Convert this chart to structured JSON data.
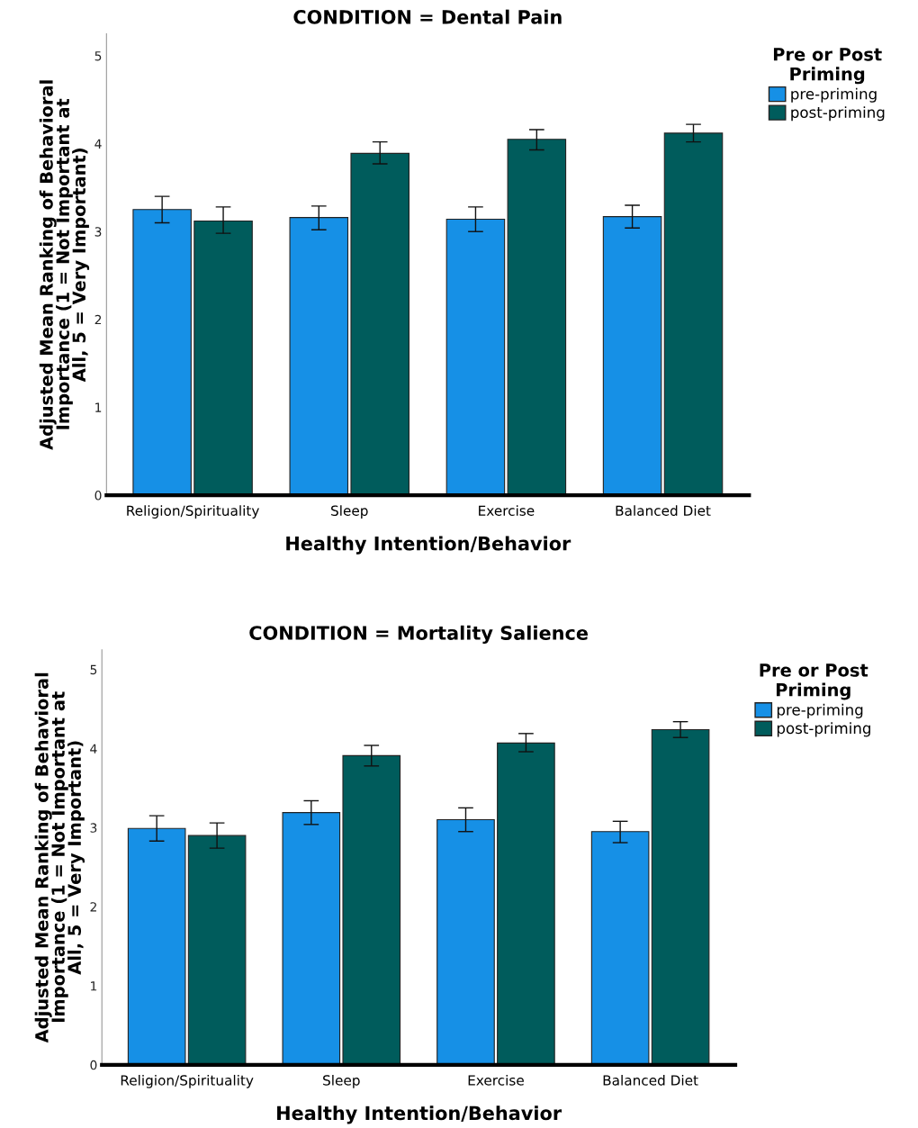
{
  "chart_data": [
    {
      "type": "bar",
      "title": "CONDITION = Dental Pain",
      "xlabel": "Healthy Intention/Behavior",
      "ylabel": "Adjusted Mean Ranking of Behavioral Importance (1 = Not Important at All, 5 = Very Important)",
      "legend_title": "Pre or Post Priming",
      "legend": "top right",
      "grid": false,
      "categories": [
        "Religion/Spirituality",
        "Sleep",
        "Exercise",
        "Balanced Diet"
      ],
      "ylim": [
        0,
        5.25
      ],
      "yticks": [
        0,
        1,
        2,
        3,
        4,
        5
      ],
      "series": [
        {
          "name": "pre-priming",
          "color": "#1690e6",
          "values": [
            3.25,
            3.16,
            3.14,
            3.17
          ],
          "errors": [
            [
              3.1,
              3.4
            ],
            [
              3.02,
              3.29
            ],
            [
              3.0,
              3.28
            ],
            [
              3.04,
              3.3
            ]
          ]
        },
        {
          "name": "post-priming",
          "color": "#005c5c",
          "values": [
            3.12,
            3.89,
            4.05,
            4.12
          ],
          "errors": [
            [
              2.98,
              3.28
            ],
            [
              3.77,
              4.02
            ],
            [
              3.93,
              4.16
            ],
            [
              4.02,
              4.22
            ]
          ]
        }
      ]
    },
    {
      "type": "bar",
      "title": "CONDITION = Mortality Salience",
      "xlabel": "Healthy Intention/Behavior",
      "ylabel": "Adjusted Mean Ranking of Behavioral Importance (1 = Not Important at All, 5 = Very Important)",
      "legend_title": "Pre or Post Priming",
      "legend": "top right",
      "grid": false,
      "categories": [
        "Religion/Spirituality",
        "Sleep",
        "Exercise",
        "Balanced Diet"
      ],
      "ylim": [
        0,
        5.25
      ],
      "yticks": [
        0,
        1,
        2,
        3,
        4,
        5
      ],
      "series": [
        {
          "name": "pre-priming",
          "color": "#1690e6",
          "values": [
            2.99,
            3.19,
            3.1,
            2.95
          ],
          "errors": [
            [
              2.83,
              3.15
            ],
            [
              3.04,
              3.34
            ],
            [
              2.95,
              3.25
            ],
            [
              2.81,
              3.08
            ]
          ]
        },
        {
          "name": "post-priming",
          "color": "#005c5c",
          "values": [
            2.9,
            3.91,
            4.07,
            4.24
          ],
          "errors": [
            [
              2.74,
              3.06
            ],
            [
              3.78,
              4.04
            ],
            [
              3.96,
              4.19
            ],
            [
              4.14,
              4.34
            ]
          ]
        }
      ]
    }
  ]
}
